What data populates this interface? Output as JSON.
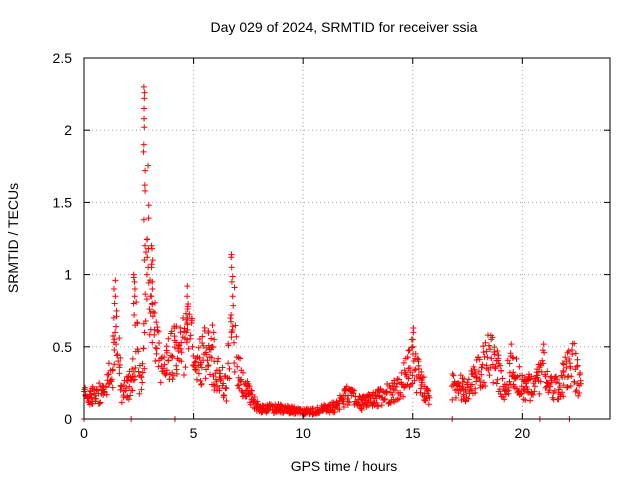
{
  "chart_data": {
    "type": "scatter",
    "title": "Day 029 of 2024, SRMTID for receiver ssia",
    "xlabel": "GPS time / hours",
    "ylabel": "SRMTID / TECUs",
    "xlim": [
      0,
      24
    ],
    "ylim": [
      0,
      2.5
    ],
    "grid": true,
    "marker": "+",
    "x_ticks": [
      0,
      5,
      10,
      15,
      20
    ],
    "x_tick_labels": [
      "0",
      "5",
      "10",
      "15",
      "20"
    ],
    "y_ticks": [
      0,
      0.5,
      1,
      1.5,
      2,
      2.5
    ],
    "y_tick_labels": [
      "0",
      "0.5",
      "1",
      "1.5",
      "2",
      "2.5"
    ],
    "series": [
      {
        "name": "SRMTID",
        "color": "#ff0000",
        "envelope": {
          "x": [
            0.0,
            0.5,
            1.0,
            1.3,
            1.5,
            1.7,
            2.0,
            2.2,
            2.4,
            2.6,
            2.8,
            2.9,
            3.0,
            3.2,
            3.5,
            3.8,
            4.2,
            4.6,
            4.8,
            5.2,
            5.6,
            6.0,
            6.5,
            6.8,
            7.0,
            7.3,
            7.6,
            8.0,
            8.5,
            9.0,
            9.5,
            10.0,
            10.5,
            11.0,
            11.5,
            12.0,
            12.3,
            12.6,
            13.0,
            13.5,
            14.0,
            14.5,
            14.8,
            15.0,
            15.2,
            15.5,
            15.8
          ],
          "values": [
            0.15,
            0.15,
            0.2,
            0.35,
            0.6,
            0.18,
            0.2,
            0.25,
            0.55,
            0.2,
            0.6,
            1.2,
            0.8,
            0.7,
            0.3,
            0.4,
            0.45,
            0.5,
            0.55,
            0.35,
            0.45,
            0.3,
            0.2,
            0.7,
            0.35,
            0.2,
            0.15,
            0.06,
            0.07,
            0.07,
            0.06,
            0.05,
            0.05,
            0.07,
            0.08,
            0.16,
            0.14,
            0.1,
            0.12,
            0.15,
            0.18,
            0.22,
            0.35,
            0.4,
            0.3,
            0.2,
            0.15
          ]
        },
        "envelope2": {
          "x": [
            16.8,
            17.0,
            17.5,
            18.0,
            18.5,
            18.8,
            19.2,
            19.5,
            20.0,
            20.5,
            21.0,
            21.3,
            21.7,
            22.0,
            22.3,
            22.7
          ],
          "values": [
            0.22,
            0.22,
            0.2,
            0.3,
            0.42,
            0.35,
            0.2,
            0.35,
            0.22,
            0.2,
            0.35,
            0.2,
            0.22,
            0.3,
            0.38,
            0.2
          ]
        },
        "spikes": [
          {
            "x": 2.75,
            "values": [
              1.1,
              1.2,
              1.38,
              1.58,
              1.62,
              1.72,
              1.85,
              1.9,
              2.02,
              2.08,
              2.15,
              2.22,
              2.26,
              2.3
            ]
          },
          {
            "x": 2.9,
            "values": [
              1.0,
              1.05,
              1.12,
              1.18
            ]
          },
          {
            "x": 3.1,
            "values": [
              0.8,
              0.85,
              0.9,
              0.95,
              1.05,
              1.1,
              1.18,
              1.2
            ]
          },
          {
            "x": 2.3,
            "values": [
              0.65,
              0.72,
              0.8,
              0.85,
              0.9,
              0.95,
              0.98,
              1.0
            ]
          },
          {
            "x": 1.4,
            "values": [
              0.55,
              0.6,
              0.7,
              0.8,
              0.85,
              0.9,
              0.96
            ]
          },
          {
            "x": 4.7,
            "values": [
              0.55,
              0.6,
              0.7,
              0.78,
              0.85,
              0.92
            ]
          },
          {
            "x": 6.75,
            "values": [
              0.6,
              0.72,
              0.85,
              0.95,
              1.05,
              1.12,
              1.14
            ]
          },
          {
            "x": 15.0,
            "values": [
              0.45,
              0.5,
              0.55,
              0.6,
              0.63
            ]
          },
          {
            "x": 5.9,
            "values": [
              0.5,
              0.55,
              0.6,
              0.65
            ]
          }
        ],
        "zeros": [
          0.0,
          2.15,
          4.15,
          16.8,
          20.8,
          22.15
        ]
      }
    ]
  }
}
